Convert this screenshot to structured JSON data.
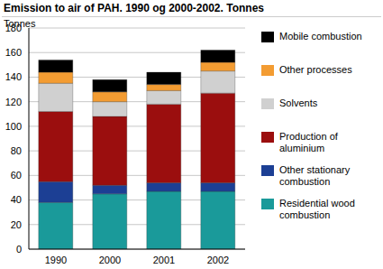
{
  "chart_data": {
    "type": "bar",
    "title": "Emission to air of PAH. 1990 og 2000-2002. Tonnes",
    "y_label": "Tonnes",
    "categories": [
      "1990",
      "2000",
      "2001",
      "2002"
    ],
    "stacked": true,
    "grid": true,
    "legend": "right",
    "ylim": [
      0,
      180
    ],
    "yticks": [
      0,
      20,
      40,
      60,
      80,
      100,
      120,
      140,
      160,
      180
    ],
    "series": [
      {
        "name": "Residential wood combustion",
        "color": "#1a9a9a",
        "values": [
          38,
          45,
          47,
          47
        ]
      },
      {
        "name": "Other stationary combustion",
        "color": "#1c3f94",
        "values": [
          17,
          7,
          7,
          7
        ]
      },
      {
        "name": "Production of aluminium",
        "color": "#9b0e0e",
        "values": [
          57,
          56,
          64,
          73
        ]
      },
      {
        "name": "Solvents",
        "color": "#d0d0d0",
        "values": [
          23,
          12,
          11,
          18
        ]
      },
      {
        "name": "Other processes",
        "color": "#f39c32",
        "values": [
          9,
          8,
          5,
          7
        ]
      },
      {
        "name": "Mobile combustion",
        "color": "#000000",
        "values": [
          10,
          10,
          10,
          10
        ]
      }
    ]
  }
}
